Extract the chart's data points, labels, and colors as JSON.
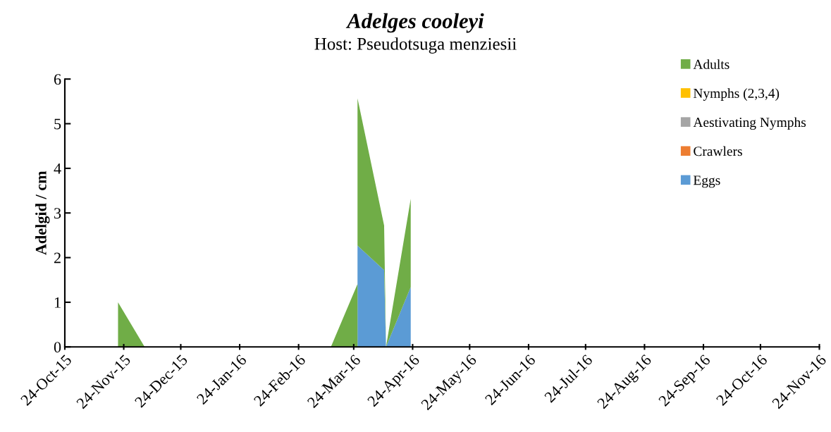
{
  "chart_data": {
    "type": "area",
    "stacked": true,
    "title": "Adelges cooleyi",
    "subtitle": "Host: Pseudotsuga menziesii",
    "ylabel": "Adelgid / cm",
    "x": [
      "2015-11-21",
      "2015-11-21",
      "2015-12-05",
      "2016-03-12",
      "2016-03-26",
      "2016-03-26",
      "2016-04-09",
      "2016-04-10",
      "2016-04-23",
      "2016-04-23"
    ],
    "series": [
      {
        "name": "Eggs",
        "color": "#5b9bd5",
        "values": [
          0,
          0,
          0,
          0,
          0,
          2.27,
          1.72,
          0,
          1.34,
          0
        ]
      },
      {
        "name": "Crawlers",
        "color": "#ed7d31",
        "values": [
          null,
          null,
          null,
          null,
          null,
          null,
          null,
          null,
          null,
          null
        ]
      },
      {
        "name": "Aestivating Nymphs",
        "color": "#a5a5a5",
        "values": [
          null,
          null,
          null,
          null,
          null,
          null,
          null,
          null,
          null,
          null
        ]
      },
      {
        "name": "Nymphs (2,3,4)",
        "color": "#ffc000",
        "values": [
          null,
          null,
          null,
          null,
          null,
          null,
          null,
          null,
          null,
          null
        ]
      },
      {
        "name": "Adults",
        "color": "#70ad47",
        "values": [
          0,
          1.0,
          0,
          0,
          1.41,
          3.3,
          1.0,
          0,
          1.98,
          0
        ]
      }
    ],
    "xlim": [
      "2015-10-24",
      "2016-11-24"
    ],
    "xticks": [
      {
        "value": "2015-10-24",
        "label": "24-Oct-15"
      },
      {
        "value": "2015-11-24",
        "label": "24-Nov-15"
      },
      {
        "value": "2015-12-24",
        "label": "24-Dec-15"
      },
      {
        "value": "2016-01-24",
        "label": "24-Jan-16"
      },
      {
        "value": "2016-02-24",
        "label": "24-Feb-16"
      },
      {
        "value": "2016-03-24",
        "label": "24-Mar-16"
      },
      {
        "value": "2016-04-24",
        "label": "24-Apr-16"
      },
      {
        "value": "2016-05-24",
        "label": "24-May-16"
      },
      {
        "value": "2016-06-24",
        "label": "24-Jun-16"
      },
      {
        "value": "2016-07-24",
        "label": "24-Jul-16"
      },
      {
        "value": "2016-08-24",
        "label": "24-Aug-16"
      },
      {
        "value": "2016-09-24",
        "label": "24-Sep-16"
      },
      {
        "value": "2016-10-24",
        "label": "24-Oct-16"
      },
      {
        "value": "2016-11-24",
        "label": "24-Nov-16"
      }
    ],
    "ylim": [
      0,
      6
    ],
    "yticks": [
      0,
      1,
      2,
      3,
      4,
      5,
      6
    ],
    "grid": false,
    "legend": "right"
  }
}
